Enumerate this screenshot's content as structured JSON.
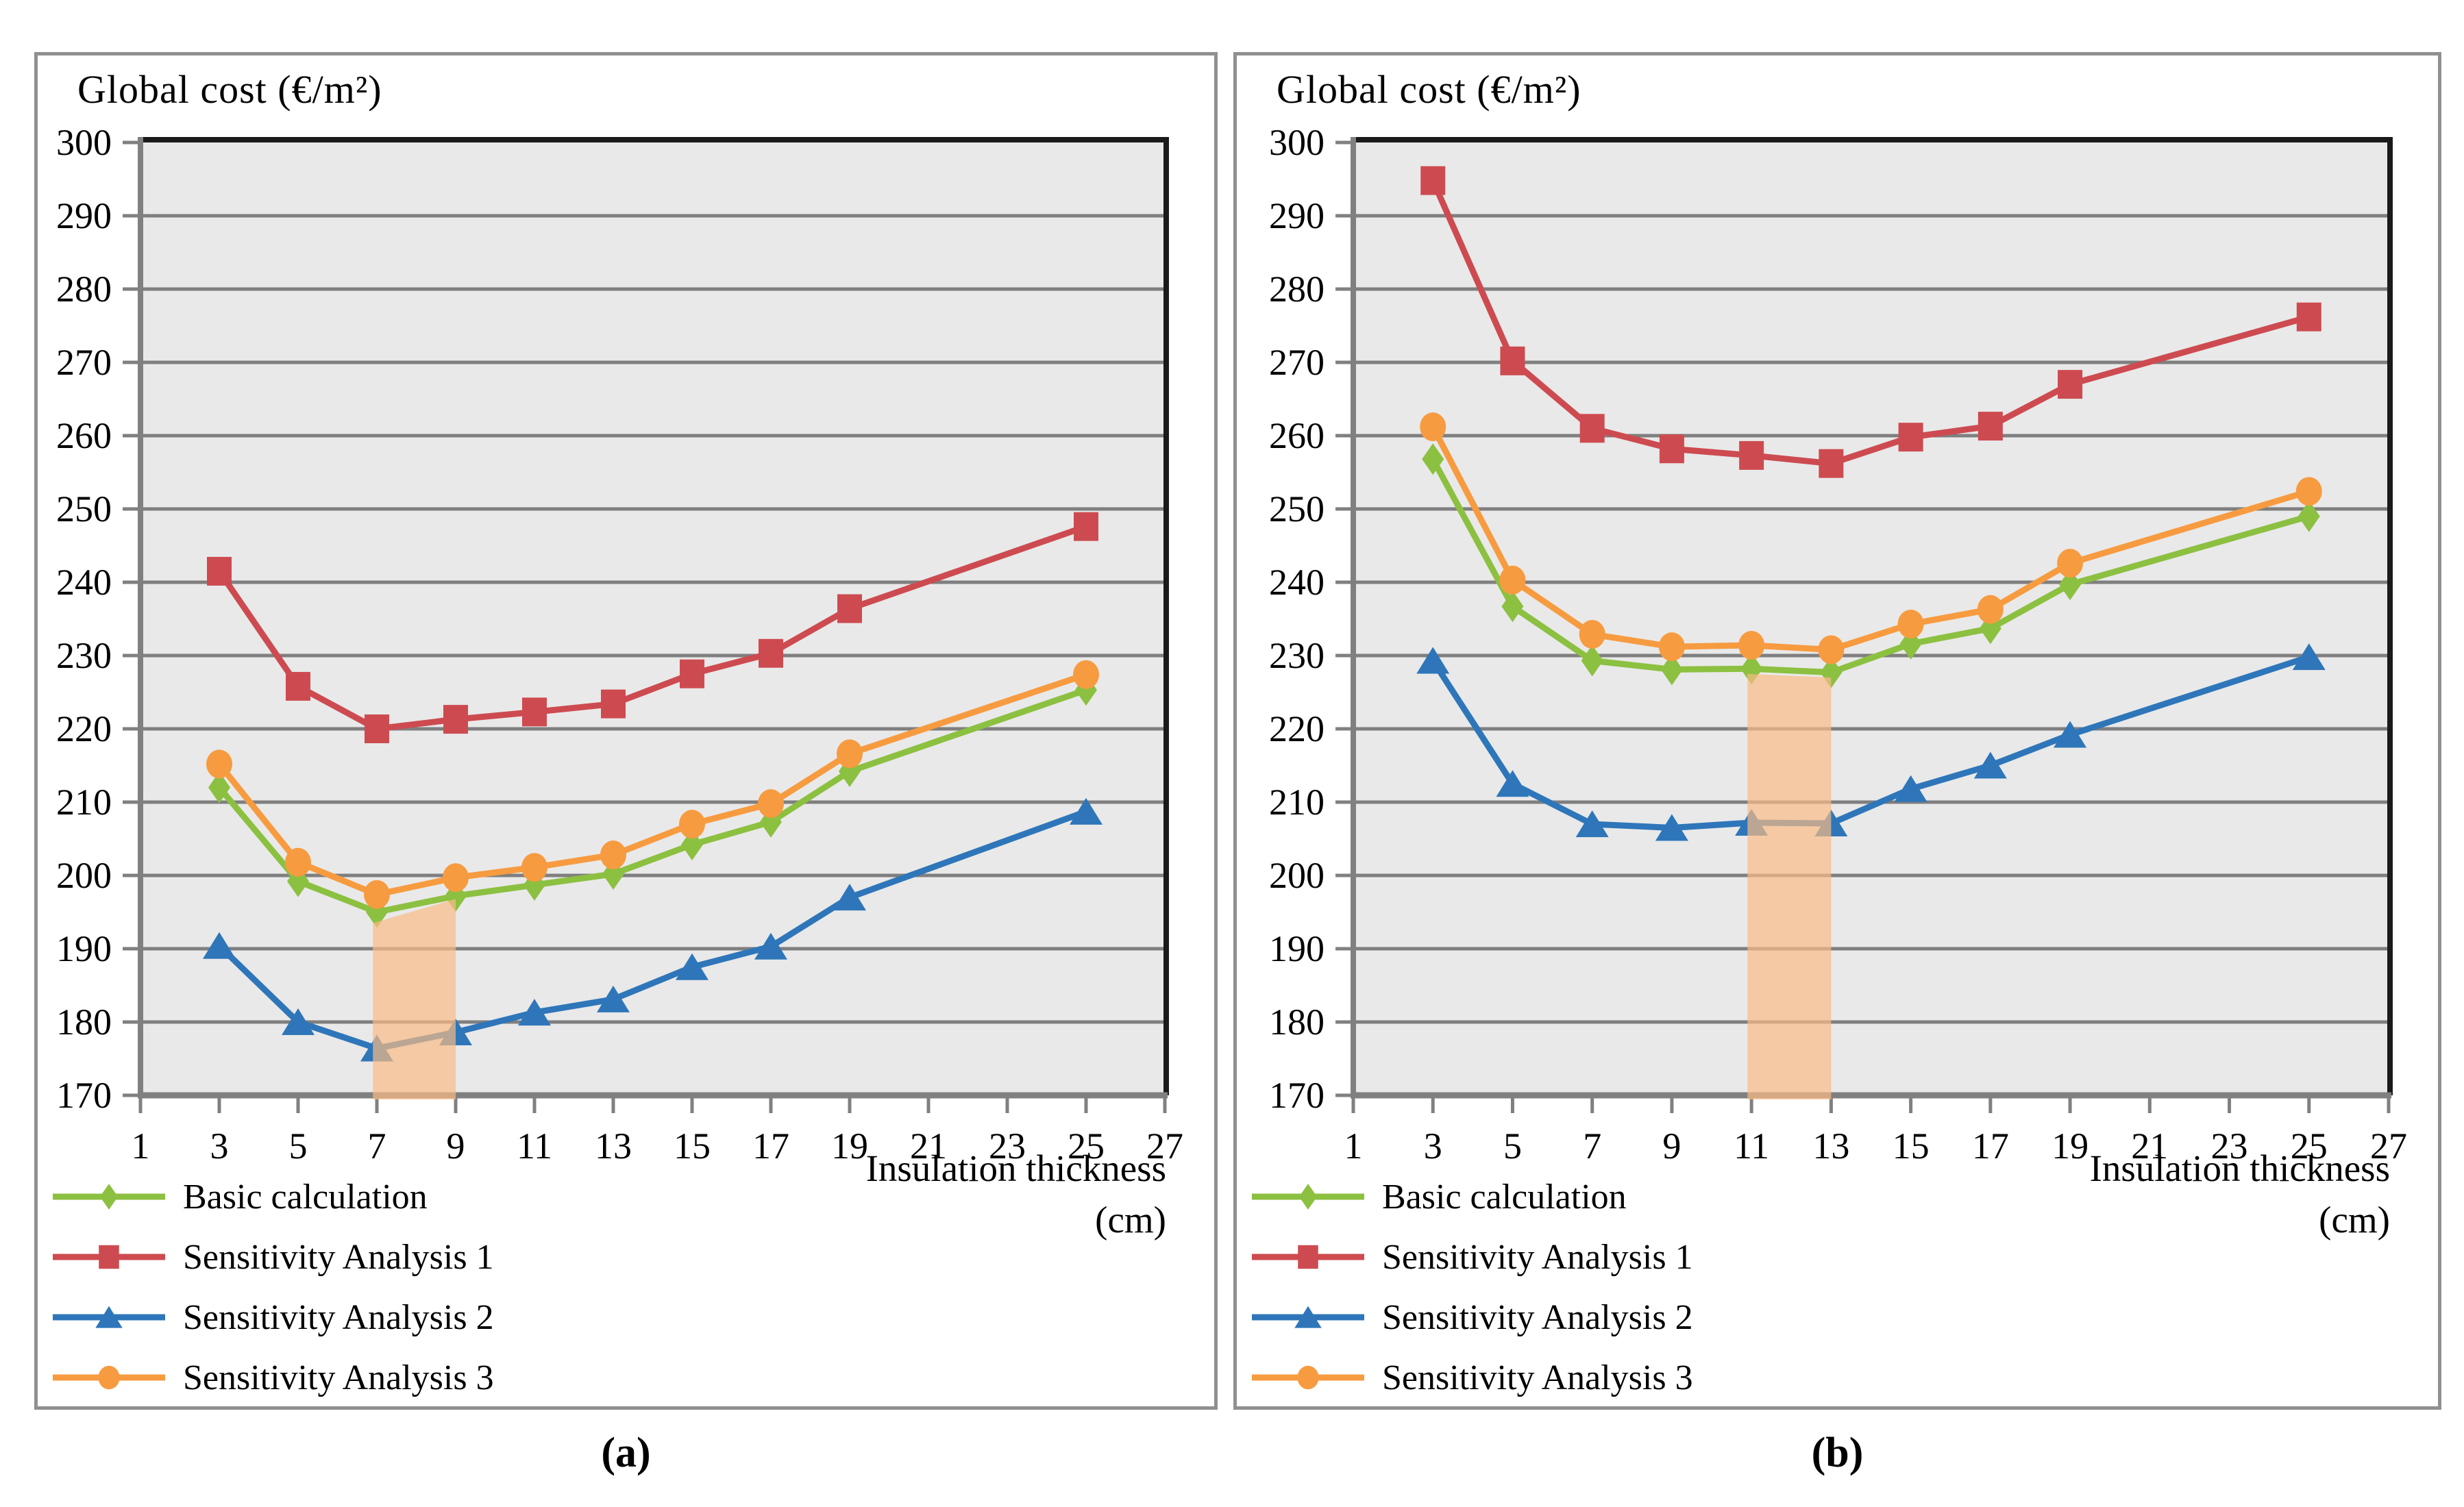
{
  "styles": {
    "plot_bg": "#E9E9E9",
    "grid_color": "#7F7F7F",
    "axis_color": "#808080",
    "frame_color": "#1A1A1A",
    "panel_border": "#909090",
    "series_green": "#8CC041",
    "series_red": "#CD4B50",
    "series_blue": "#2E76B9",
    "series_orange": "#F79B40",
    "band_color": "#F8BA84"
  },
  "chart_data": [
    {
      "type": "line",
      "panel_label": "(a)",
      "title": "Global cost (€/m²)",
      "xlabel_lines": [
        "Insulation thickness",
        "(cm)"
      ],
      "xlim": [
        1,
        27
      ],
      "ylim": [
        170,
        300
      ],
      "x_tick_labels": [
        1,
        3,
        5,
        7,
        9,
        11,
        13,
        15,
        17,
        19,
        21,
        23,
        25,
        27
      ],
      "y_tick_labels": [
        170,
        180,
        190,
        200,
        210,
        220,
        230,
        240,
        250,
        260,
        270,
        280,
        290,
        300
      ],
      "grid": true,
      "legend_position": "bottom-left",
      "x": [
        3,
        5,
        7,
        9,
        11,
        13,
        15,
        17,
        19,
        25
      ],
      "series": [
        {
          "name": "Basic calculation",
          "marker": "diamond",
          "color": "#8CC041",
          "values": [
            212.0,
            199.2,
            195.0,
            197.2,
            198.7,
            200.2,
            204.2,
            207.3,
            214.2,
            225.3
          ]
        },
        {
          "name": "Sensitivity Analysis 1",
          "marker": "square",
          "color": "#CD4B50",
          "values": [
            241.5,
            225.8,
            220.0,
            221.3,
            222.3,
            223.4,
            227.5,
            230.3,
            236.4,
            247.6
          ]
        },
        {
          "name": "Sensitivity Analysis 2",
          "marker": "triangle",
          "color": "#2E76B9",
          "values": [
            190.4,
            180.0,
            176.4,
            178.6,
            181.3,
            183.1,
            187.5,
            190.3,
            197.0,
            208.7
          ]
        },
        {
          "name": "Sensitivity Analysis 3",
          "marker": "circle",
          "color": "#F79B40",
          "values": [
            215.2,
            201.8,
            197.4,
            199.7,
            201.1,
            202.8,
            207.0,
            209.8,
            216.6,
            227.4
          ]
        }
      ],
      "highlight_band": {
        "x_start": 6.9,
        "x_end": 9.0,
        "top_start": 193.5,
        "top_end": 196.8,
        "color": "#F8BA84",
        "opacity": 0.7
      }
    },
    {
      "type": "line",
      "panel_label": "(b)",
      "title": "Global cost (€/m²)",
      "xlabel_lines": [
        "Insulation thickness",
        "(cm)"
      ],
      "xlim": [
        1,
        27
      ],
      "ylim": [
        170,
        300
      ],
      "x_tick_labels": [
        1,
        3,
        5,
        7,
        9,
        11,
        13,
        15,
        17,
        19,
        21,
        23,
        25,
        27
      ],
      "y_tick_labels": [
        170,
        180,
        190,
        200,
        210,
        220,
        230,
        240,
        250,
        260,
        270,
        280,
        290,
        300
      ],
      "grid": true,
      "legend_position": "bottom-left",
      "x": [
        3,
        5,
        7,
        9,
        11,
        13,
        15,
        17,
        19,
        25
      ],
      "series": [
        {
          "name": "Basic calculation",
          "marker": "diamond",
          "color": "#8CC041",
          "values": [
            256.8,
            236.7,
            229.3,
            228.1,
            228.2,
            227.7,
            231.6,
            233.7,
            239.7,
            249.0
          ]
        },
        {
          "name": "Sensitivity Analysis 1",
          "marker": "square",
          "color": "#CD4B50",
          "values": [
            294.8,
            270.2,
            261.0,
            258.2,
            257.3,
            256.2,
            259.8,
            261.3,
            267.0,
            276.2
          ]
        },
        {
          "name": "Sensitivity Analysis 2",
          "marker": "triangle",
          "color": "#2E76B9",
          "values": [
            229.3,
            212.5,
            207.0,
            206.5,
            207.2,
            207.1,
            211.8,
            215.0,
            219.2,
            229.8
          ]
        },
        {
          "name": "Sensitivity Analysis 3",
          "marker": "circle",
          "color": "#F79B40",
          "values": [
            261.2,
            240.3,
            232.9,
            231.2,
            231.4,
            230.8,
            234.3,
            236.3,
            242.6,
            252.4
          ]
        }
      ],
      "highlight_band": {
        "x_start": 10.9,
        "x_end": 13.0,
        "top_start": 227.5,
        "top_end": 227.0,
        "color": "#F8BA84",
        "opacity": 0.7
      }
    }
  ]
}
